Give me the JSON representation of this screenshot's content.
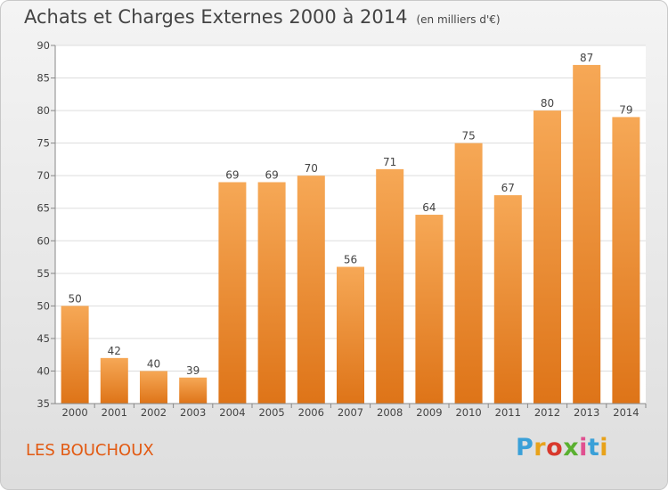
{
  "header": {
    "title": "Achats et Charges Externes 2000 à 2014",
    "unit": "(en milliers d'€)"
  },
  "footer": {
    "commune": "LES BOUCHOUX",
    "logo_text": "Proxiti",
    "logo_colors": [
      "#3aa0d8",
      "#e8a21a",
      "#d8382c",
      "#5ab030",
      "#e05090",
      "#3aa0d8",
      "#e8a21a"
    ]
  },
  "colors": {
    "bar_light": "#f6a856",
    "bar_dark": "#de7418",
    "grid": "#dddddd",
    "axis": "#888888",
    "text": "#444444"
  },
  "chart_data": {
    "type": "bar",
    "title": "Achats et Charges Externes 2000 à 2014",
    "categories": [
      "2000",
      "2001",
      "2002",
      "2003",
      "2004",
      "2005",
      "2006",
      "2007",
      "2008",
      "2009",
      "2010",
      "2011",
      "2012",
      "2013",
      "2014"
    ],
    "values": [
      50,
      42,
      40,
      39,
      69,
      69,
      70,
      56,
      71,
      64,
      75,
      67,
      80,
      87,
      79
    ],
    "ylim": [
      35,
      90
    ],
    "yticks": [
      35,
      40,
      45,
      50,
      55,
      60,
      65,
      70,
      75,
      80,
      85,
      90
    ],
    "grid": true,
    "data_labels": true
  }
}
